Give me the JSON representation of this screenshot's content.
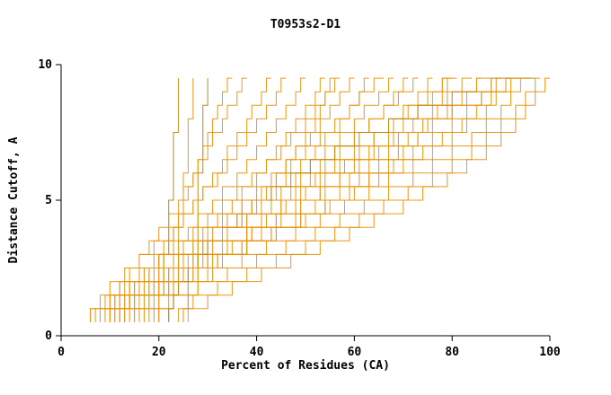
{
  "chart_data": {
    "type": "line",
    "subtype": "step",
    "title": "T0953s2-D1",
    "xlabel": "Percent of Residues (CA)",
    "ylabel": "Distance Cutoff, A",
    "xlim": [
      0,
      100
    ],
    "ylim": [
      0,
      10
    ],
    "x_ticks": [
      0,
      20,
      40,
      60,
      80,
      100
    ],
    "y_ticks": [
      0,
      5,
      10
    ],
    "y_start": 0.5,
    "y_step": 0.5,
    "grid": false,
    "axis_color": "#000000",
    "line_colors": [
      "#e8940e",
      "#b8860b"
    ],
    "series": [
      {
        "c": 1,
        "x": [
          20,
          20,
          21,
          21,
          21,
          22,
          22,
          22,
          22,
          23,
          23,
          23,
          23,
          23,
          24,
          24,
          24,
          24,
          24
        ]
      },
      {
        "x": [
          22,
          23,
          23,
          23,
          24,
          24,
          24,
          25,
          25,
          25,
          25,
          26,
          26,
          26,
          26,
          27,
          27,
          27,
          27
        ]
      },
      {
        "c": 1,
        "x": [
          25,
          26,
          26,
          27,
          27,
          27,
          28,
          28,
          28,
          28,
          28,
          29,
          29,
          29,
          29,
          29,
          30,
          30,
          30
        ]
      },
      {
        "x": [
          12,
          14,
          16,
          18,
          20,
          22,
          23,
          24,
          25,
          26,
          27,
          28,
          29,
          30,
          31,
          32,
          33,
          34,
          35
        ]
      },
      {
        "x": [
          8,
          10,
          12,
          14,
          16,
          18,
          20,
          22,
          24,
          25,
          27,
          28,
          30,
          31,
          33,
          34,
          36,
          37,
          38
        ]
      },
      {
        "x": [
          10,
          12,
          15,
          17,
          19,
          21,
          23,
          25,
          27,
          29,
          31,
          33,
          34,
          36,
          38,
          39,
          41,
          42,
          43
        ]
      },
      {
        "x": [
          6,
          8,
          10,
          13,
          16,
          19,
          22,
          24,
          27,
          29,
          32,
          34,
          36,
          38,
          40,
          42,
          44,
          45,
          46
        ]
      },
      {
        "x": [
          9,
          11,
          14,
          17,
          20,
          23,
          26,
          28,
          31,
          33,
          36,
          38,
          40,
          42,
          44,
          46,
          48,
          49,
          50
        ]
      },
      {
        "x": [
          13,
          15,
          18,
          21,
          24,
          27,
          30,
          32,
          35,
          37,
          40,
          42,
          44,
          46,
          48,
          50,
          52,
          53,
          54
        ]
      },
      {
        "x": [
          7,
          9,
          12,
          16,
          20,
          24,
          27,
          30,
          33,
          36,
          39,
          42,
          45,
          47,
          50,
          52,
          54,
          56,
          57
        ]
      },
      {
        "x": [
          11,
          13,
          16,
          20,
          24,
          28,
          31,
          34,
          37,
          40,
          43,
          46,
          48,
          51,
          53,
          55,
          57,
          59,
          60
        ]
      },
      {
        "x": [
          15,
          17,
          20,
          24,
          28,
          31,
          34,
          37,
          40,
          43,
          46,
          49,
          52,
          54,
          57,
          59,
          61,
          62,
          63
        ]
      },
      {
        "x": [
          8,
          10,
          13,
          17,
          21,
          25,
          29,
          33,
          37,
          41,
          44,
          47,
          50,
          53,
          56,
          59,
          61,
          64,
          66
        ]
      },
      {
        "x": [
          12,
          14,
          18,
          22,
          26,
          30,
          34,
          38,
          41,
          44,
          48,
          51,
          54,
          57,
          60,
          62,
          65,
          67,
          68
        ]
      },
      {
        "x": [
          16,
          18,
          22,
          26,
          30,
          34,
          38,
          41,
          45,
          48,
          51,
          54,
          57,
          60,
          63,
          66,
          68,
          70,
          71
        ]
      },
      {
        "x": [
          10,
          12,
          15,
          19,
          24,
          29,
          33,
          37,
          41,
          45,
          49,
          53,
          56,
          60,
          63,
          66,
          69,
          72,
          73
        ]
      },
      {
        "x": [
          14,
          16,
          20,
          25,
          30,
          34,
          38,
          42,
          46,
          50,
          54,
          57,
          61,
          64,
          67,
          70,
          73,
          75,
          76
        ]
      },
      {
        "x": [
          18,
          20,
          24,
          28,
          33,
          37,
          41,
          45,
          49,
          53,
          57,
          60,
          64,
          67,
          70,
          73,
          76,
          78,
          79
        ]
      },
      {
        "x": [
          9,
          11,
          14,
          18,
          23,
          28,
          33,
          38,
          43,
          47,
          52,
          56,
          60,
          64,
          68,
          71,
          75,
          78,
          81
        ]
      },
      {
        "x": [
          13,
          15,
          19,
          24,
          29,
          34,
          39,
          44,
          48,
          53,
          57,
          61,
          65,
          69,
          72,
          76,
          79,
          82,
          84
        ]
      },
      {
        "x": [
          17,
          19,
          23,
          28,
          33,
          38,
          43,
          48,
          52,
          57,
          61,
          65,
          69,
          73,
          76,
          80,
          83,
          85,
          86
        ]
      },
      {
        "x": [
          11,
          13,
          17,
          22,
          28,
          33,
          39,
          44,
          49,
          54,
          59,
          63,
          67,
          71,
          75,
          79,
          82,
          85,
          88
        ]
      },
      {
        "x": [
          15,
          18,
          22,
          27,
          33,
          38,
          44,
          49,
          54,
          59,
          63,
          68,
          72,
          76,
          80,
          83,
          86,
          89,
          90
        ]
      },
      {
        "x": [
          19,
          22,
          26,
          31,
          37,
          42,
          48,
          53,
          58,
          63,
          67,
          72,
          76,
          80,
          83,
          87,
          89,
          91,
          92
        ]
      },
      {
        "x": [
          12,
          15,
          20,
          26,
          32,
          38,
          44,
          50,
          55,
          60,
          65,
          70,
          74,
          78,
          82,
          85,
          88,
          91,
          94
        ]
      },
      {
        "x": [
          20,
          23,
          28,
          34,
          40,
          46,
          52,
          57,
          62,
          67,
          72,
          76,
          80,
          84,
          87,
          90,
          92,
          94,
          96
        ]
      },
      {
        "x": [
          24,
          27,
          32,
          38,
          44,
          50,
          56,
          61,
          66,
          71,
          76,
          80,
          84,
          87,
          90,
          93,
          95,
          97,
          98
        ]
      },
      {
        "x": [
          26,
          30,
          35,
          41,
          47,
          53,
          59,
          64,
          70,
          74,
          79,
          83,
          87,
          90,
          93,
          95,
          97,
          99,
          100
        ]
      },
      {
        "c": 1,
        "x": [
          22,
          23,
          24,
          26,
          28,
          30,
          33,
          36,
          39,
          43,
          47,
          51,
          56,
          61,
          67,
          73,
          80,
          88,
          97
        ]
      },
      {
        "x": [
          6,
          10,
          15,
          20,
          25,
          29,
          33,
          36,
          39,
          42,
          44,
          46,
          48,
          50,
          52,
          53,
          54,
          55,
          56
        ]
      },
      {
        "x": [
          10,
          14,
          19,
          25,
          31,
          37,
          43,
          49,
          54,
          59,
          63,
          67,
          70,
          73,
          75,
          77,
          78,
          79,
          80
        ]
      },
      {
        "x": [
          25,
          26,
          28,
          30,
          32,
          35,
          38,
          41,
          45,
          49,
          53,
          58,
          63,
          68,
          74,
          80,
          86,
          92,
          95
        ]
      }
    ]
  }
}
